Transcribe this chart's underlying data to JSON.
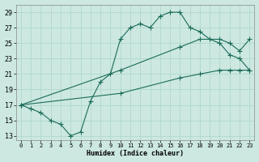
{
  "xlabel": "Humidex (Indice chaleur)",
  "xlim": [
    -0.5,
    23.5
  ],
  "ylim": [
    12.5,
    30.0
  ],
  "xticks": [
    0,
    1,
    2,
    3,
    4,
    5,
    6,
    7,
    8,
    9,
    10,
    11,
    12,
    13,
    14,
    15,
    16,
    17,
    18,
    19,
    20,
    21,
    22,
    23
  ],
  "yticks": [
    13,
    15,
    17,
    19,
    21,
    23,
    25,
    27,
    29
  ],
  "bg_color": "#cce8e0",
  "line_color": "#1a6b5a",
  "grid_color": "#b0d8ce",
  "curve1_x": [
    0,
    1,
    2,
    3,
    4,
    5,
    6,
    7,
    8,
    9,
    10,
    11,
    12,
    13,
    14,
    15,
    16,
    17,
    18,
    19,
    20,
    21,
    22,
    23
  ],
  "curve1_y": [
    17,
    16.5,
    16.0,
    15.0,
    14.5,
    13.0,
    13.5,
    17.5,
    20.0,
    21.0,
    25.5,
    27.0,
    27.5,
    27.0,
    28.5,
    29.0,
    29.0,
    27.0,
    26.5,
    25.5,
    25.0,
    23.5,
    23.0,
    21.5
  ],
  "curve2_x": [
    0,
    10,
    16,
    18,
    20,
    21,
    22,
    23
  ],
  "curve2_y": [
    17,
    21.5,
    24.5,
    25.5,
    25.5,
    25.0,
    24.0,
    25.5
  ],
  "curve3_x": [
    0,
    10,
    16,
    18,
    20,
    21,
    22,
    23
  ],
  "curve3_y": [
    17,
    18.5,
    20.5,
    21.0,
    21.5,
    21.5,
    21.5,
    21.5
  ]
}
